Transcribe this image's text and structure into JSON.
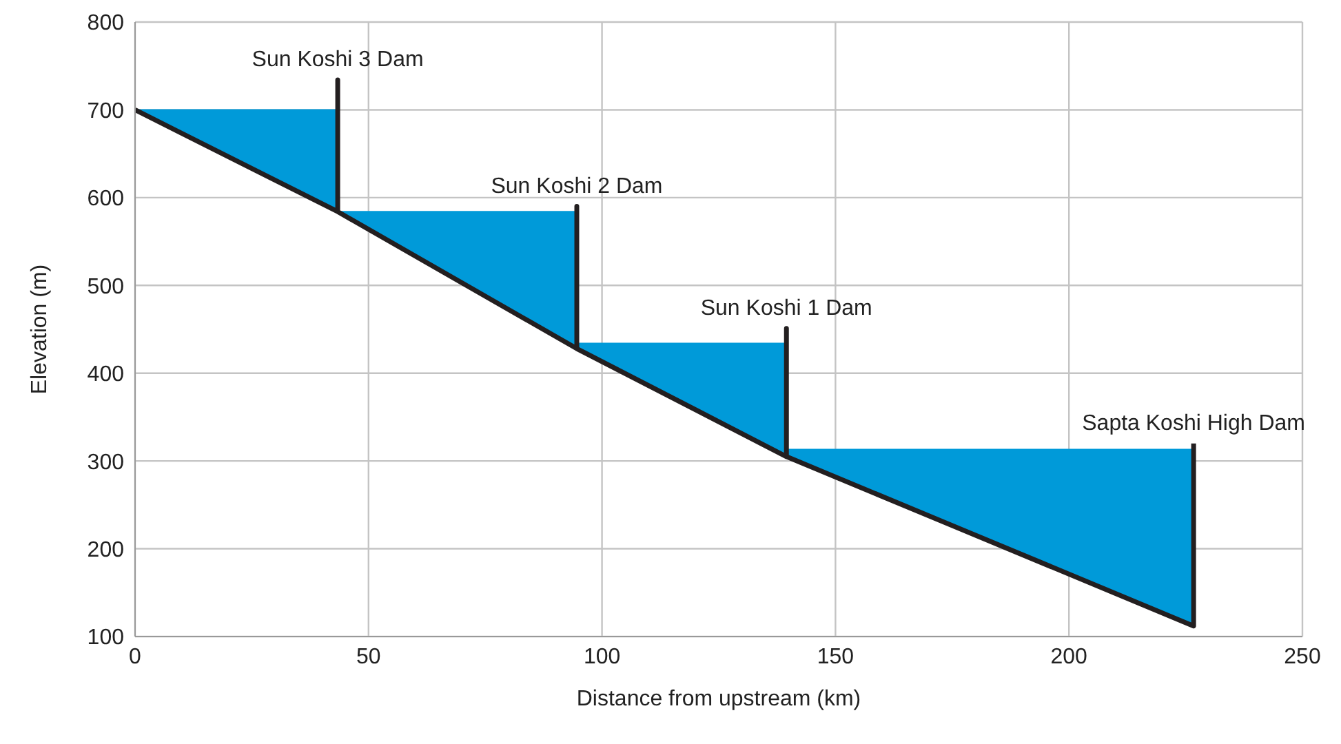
{
  "chart_data": {
    "type": "line",
    "xlabel": "Distance from upstream (km)",
    "ylabel": "Elevation (m)",
    "xlim": [
      0,
      250
    ],
    "xticks": [
      0,
      50,
      100,
      150,
      200,
      250
    ],
    "ylim": [
      100,
      800
    ],
    "yticks": [
      100,
      200,
      300,
      400,
      500,
      600,
      700,
      800
    ],
    "grid": true,
    "legend": false,
    "marker": "none",
    "line_style": "solid",
    "series": [
      {
        "type": "area",
        "color": "#009ad9",
        "x": [
          0,
          43.4,
          43.4,
          94.6,
          94.6,
          139.5,
          139.5,
          226.7
        ],
        "values": [
          700,
          700,
          584,
          584,
          434,
          434,
          313,
          313
        ]
      },
      {
        "color": "#231f20",
        "x": [
          0,
          43.4,
          43.4,
          43.4,
          94.6,
          94.6,
          94.6,
          139.5,
          139.5,
          139.5,
          226.7,
          226.7
        ],
        "values": [
          700,
          584,
          734,
          584,
          428,
          590,
          428,
          305,
          451,
          305,
          112,
          320
        ]
      }
    ],
    "annotations": [
      {
        "text": "Sun Koshi 3 Dam",
        "x": 43.4,
        "y": 734
      },
      {
        "text": "Sun Koshi 2 Dam",
        "x": 94.6,
        "y": 590
      },
      {
        "text": "Sun Koshi 1 Dam",
        "x": 139.5,
        "y": 451
      },
      {
        "text": "Sapta Koshi High Dam",
        "x": 226.7,
        "y": 320
      }
    ]
  }
}
